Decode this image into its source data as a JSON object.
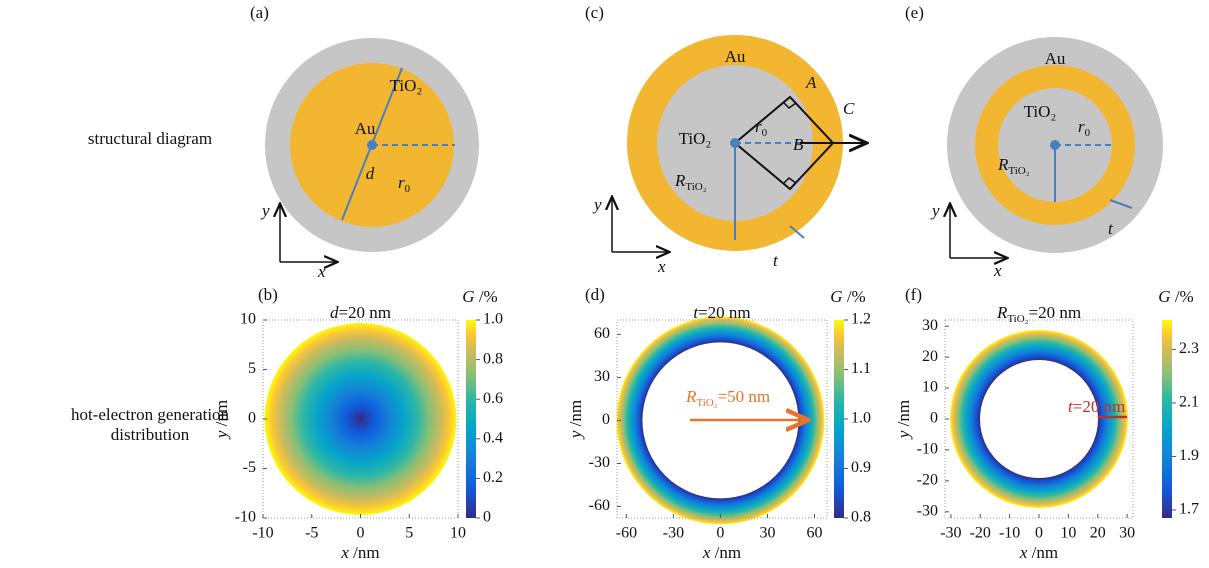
{
  "row_labels": {
    "structural": "structural diagram",
    "distribution": [
      "hot-electron generation",
      "distribution"
    ]
  },
  "diagrams": [
    {
      "tag": "(a)",
      "shell": "TiO₂",
      "core": "Au",
      "diameter": "d",
      "radius": [
        "r",
        "0"
      ],
      "x_axis": "x",
      "y_axis": "y"
    },
    {
      "tag": "(c)",
      "shell": "Au",
      "core": "TiO₂",
      "points": [
        "A",
        "B",
        "C"
      ],
      "radius": [
        "r",
        "0"
      ],
      "core_radius": [
        "R",
        "TiO₂"
      ],
      "thickness": "t",
      "x_axis": "x",
      "y_axis": "y"
    },
    {
      "tag": "(e)",
      "shell": "Au",
      "core": "TiO₂",
      "radius": [
        "r",
        "0"
      ],
      "core_radius": [
        "R",
        "TiO₂"
      ],
      "thickness": "t",
      "x_axis": "x",
      "y_axis": "y"
    }
  ],
  "plots": [
    {
      "tag": "(b)",
      "title": [
        "d",
        "=20 nm"
      ],
      "xlabel": [
        "x",
        " /nm"
      ],
      "ylabel": [
        "y",
        " /nm"
      ],
      "colorbar_label": [
        "G",
        " /%"
      ],
      "xlim": [
        -10,
        10
      ],
      "ylim": [
        -10,
        10
      ],
      "xticks": [
        -10,
        -5,
        0,
        5,
        10
      ],
      "yticks": [
        -10,
        -5,
        0,
        5,
        10
      ],
      "clim": [
        0,
        1.0
      ],
      "cticks": [
        0,
        0.2,
        0.4,
        0.6,
        0.8,
        {
          "value": 1.0,
          "label": "1.0"
        }
      ]
    },
    {
      "tag": "(d)",
      "title": [
        "t",
        "=20 nm"
      ],
      "xlabel": [
        "x",
        " /nm"
      ],
      "ylabel": [
        "y",
        " /nm"
      ],
      "colorbar_label": [
        "G",
        " /%"
      ],
      "xlim": [
        -66,
        68
      ],
      "ylim": [
        -68,
        70
      ],
      "xticks": [
        -60,
        -30,
        0,
        30,
        60
      ],
      "yticks": [
        -60,
        -30,
        0,
        30,
        60
      ],
      "clim": [
        0.8,
        1.2
      ],
      "cticks": [
        0.8,
        0.9,
        {
          "value": 1.0,
          "label": "1.0"
        },
        1.1,
        1.2
      ],
      "annotation": [
        "R",
        "TiO₂",
        "=50 nm"
      ]
    },
    {
      "tag": "(f)",
      "title": [
        "R",
        "TiO₂",
        "=20 nm"
      ],
      "xlabel": [
        "x",
        " /nm"
      ],
      "ylabel": [
        "y",
        " /nm"
      ],
      "colorbar_label": [
        "G",
        " /%"
      ],
      "xlim": [
        -32,
        32
      ],
      "ylim": [
        -32,
        32
      ],
      "xticks": [
        -30,
        -20,
        -10,
        0,
        10,
        20,
        30
      ],
      "yticks": [
        -30,
        -20,
        -10,
        0,
        10,
        20,
        30
      ],
      "clim": [
        1.67,
        2.41
      ],
      "cticks": [
        1.7,
        1.9,
        2.1,
        2.3
      ],
      "annotation": [
        "t",
        "=20 nm"
      ]
    }
  ]
}
